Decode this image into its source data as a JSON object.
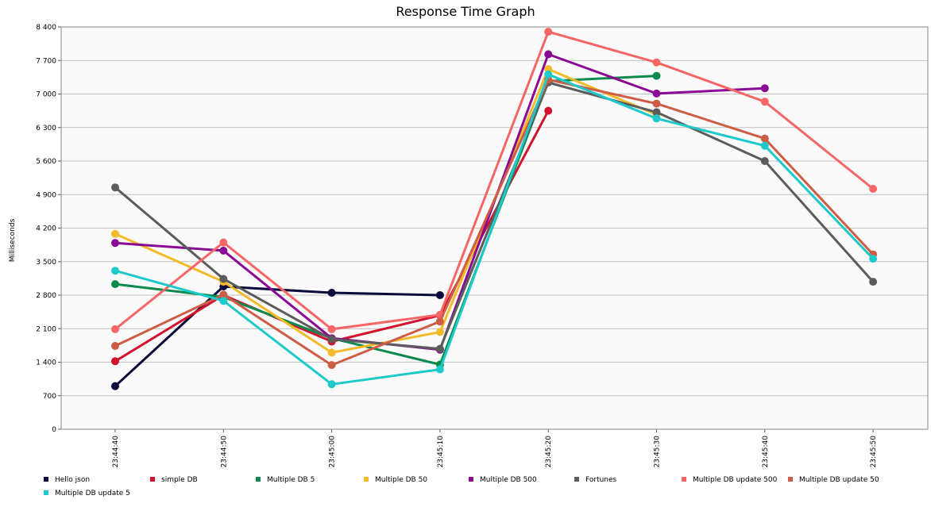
{
  "chart_data": {
    "type": "line",
    "title": "Response Time Graph",
    "ylabel": "Milliseconds",
    "xlabel": "",
    "x": [
      "23:44:40",
      "23:44:50",
      "23:45:00",
      "23:45:10",
      "23:45:20",
      "23:45:30",
      "23:45:40",
      "23:45:50"
    ],
    "ylim": [
      0,
      8400
    ],
    "yticks": [
      0,
      700,
      1400,
      2100,
      2800,
      3500,
      4200,
      4900,
      5600,
      6300,
      7000,
      7700,
      8400
    ],
    "ytick_labels": [
      "0",
      "700",
      "1 400",
      "2 100",
      "2 800",
      "3 500",
      "4 200",
      "4 900",
      "5 600",
      "6 300",
      "7 000",
      "7 700",
      "8 400"
    ],
    "grid": true,
    "legend_position": "bottom",
    "series": [
      {
        "name": "Hello json",
        "color": "#0b0b3b",
        "values": [
          900,
          2980,
          2850,
          2800,
          null,
          null,
          null,
          null
        ]
      },
      {
        "name": "simple DB",
        "color": "#d2132e",
        "values": [
          1420,
          2800,
          1830,
          2380,
          6650,
          null,
          null,
          null
        ]
      },
      {
        "name": "Multiple DB 5",
        "color": "#0c8a4c",
        "values": [
          3030,
          2760,
          1900,
          1350,
          7270,
          7380,
          null,
          null
        ]
      },
      {
        "name": "Multiple DB 50",
        "color": "#f2bb2b",
        "values": [
          4080,
          3080,
          1600,
          2030,
          7520,
          6570,
          null,
          null
        ]
      },
      {
        "name": "Multiple DB 500",
        "color": "#8a0a95",
        "values": [
          3890,
          3730,
          1900,
          1660,
          7830,
          7010,
          7120,
          null
        ]
      },
      {
        "name": "Fortunes",
        "color": "#5c5c5c",
        "values": [
          5050,
          3140,
          1880,
          1680,
          7240,
          6620,
          5600,
          3080
        ]
      },
      {
        "name": "Multiple DB update 500",
        "color": "#f76666",
        "values": [
          2090,
          3900,
          2090,
          2390,
          8300,
          7660,
          6840,
          5020
        ]
      },
      {
        "name": "Multiple DB update 50",
        "color": "#cd5d46",
        "values": [
          1740,
          2810,
          1340,
          2250,
          7300,
          6800,
          6070,
          3650
        ]
      },
      {
        "name": "Multiple DB update 5",
        "color": "#1ec9c9",
        "values": [
          3310,
          2680,
          940,
          1250,
          7410,
          6490,
          5920,
          3560
        ]
      }
    ]
  }
}
